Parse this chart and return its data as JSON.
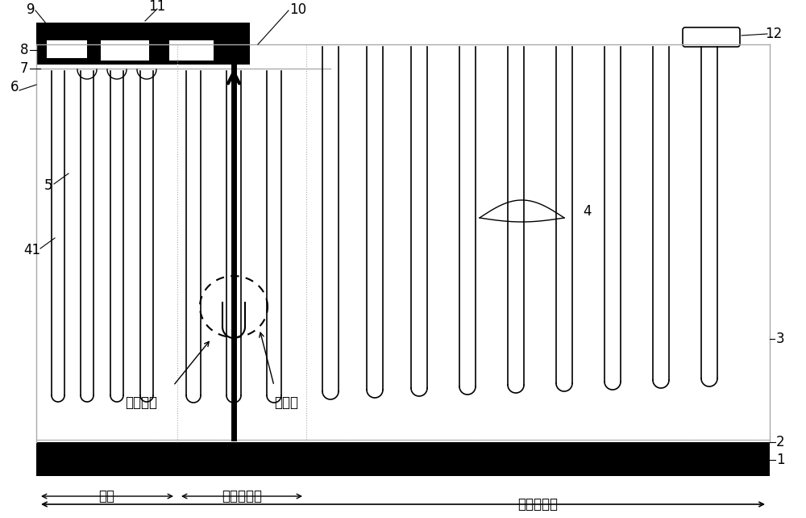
{
  "fig_width": 10.0,
  "fig_height": 6.42,
  "dpi": 100,
  "bg_color": "#ffffff",
  "lc": "#000000",
  "gc": "#aaaaaa",
  "bottom_labels": [
    "元胞",
    "终端击穿区",
    "终端耐压区"
  ],
  "avalanche_text": "雪崩电流",
  "breakdown_text": "击穿点"
}
